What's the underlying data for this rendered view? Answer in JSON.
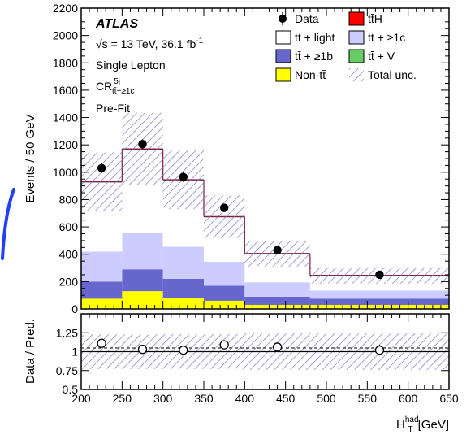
{
  "chart_data": [
    {
      "type": "bar",
      "stacked": true,
      "panel": "main",
      "bin_edges": [
        200,
        250,
        300,
        350,
        400,
        480,
        650
      ],
      "xlim": [
        200,
        650
      ],
      "ylim": [
        0,
        2200
      ],
      "ylabel": "Events / 50 GeV",
      "ytick_step": 200,
      "series": [
        {
          "name": "Non-tt̄",
          "color": "#ffff00",
          "values": [
            75,
            130,
            80,
            60,
            30,
            30
          ]
        },
        {
          "name": "tt̄ + ≥1b",
          "color": "#6666cc",
          "values": [
            125,
            160,
            140,
            110,
            60,
            45
          ]
        },
        {
          "name": "tt̄ + ≥1c",
          "color": "#ccccff",
          "values": [
            220,
            270,
            235,
            175,
            105,
            60
          ]
        },
        {
          "name": "tt̄ + light",
          "color": "#ffffff",
          "values": [
            510,
            610,
            490,
            330,
            210,
            110
          ]
        },
        {
          "name": "tt̄V",
          "color": "#66cc66",
          "values": [
            2,
            2,
            2,
            1,
            1,
            1
          ]
        },
        {
          "name": "tt̄H",
          "color": "#ff0000",
          "values": [
            1,
            1,
            1,
            1,
            1,
            1
          ]
        }
      ],
      "total_prediction": [
        930,
        1170,
        945,
        675,
        405,
        245
      ],
      "uncertainty": [
        215,
        265,
        215,
        155,
        95,
        60
      ],
      "data_points": {
        "name": "Data",
        "x": [
          225,
          275,
          325,
          375,
          440,
          565
        ],
        "y": [
          1030,
          1205,
          965,
          740,
          430,
          250
        ],
        "yerr": [
          35,
          35,
          35,
          30,
          20,
          16
        ]
      },
      "legend": [
        {
          "label": "Data",
          "style": "marker"
        },
        {
          "label": "tt̄H",
          "style": "fill",
          "color": "#ff0000"
        },
        {
          "label": "tt̄ + light",
          "style": "fill",
          "color": "#ffffff"
        },
        {
          "label": "tt̄ + ≥1c",
          "style": "fill",
          "color": "#ccccff"
        },
        {
          "label": "tt̄ + ≥1b",
          "style": "fill",
          "color": "#6666cc"
        },
        {
          "label": "tt̄ + V",
          "style": "fill",
          "color": "#66cc66"
        },
        {
          "label": "Non-tt̄",
          "style": "fill",
          "color": "#ffff00"
        },
        {
          "label": "Total unc.",
          "style": "hatch",
          "color": "#7777cc"
        }
      ],
      "legend_position": "top-right",
      "annotations": {
        "experiment": "ATLAS",
        "energy_lumi": "√s = 13 TeV, 36.1 fb",
        "lumi_exponent": "-1",
        "channel": "Single Lepton",
        "region_prefix": "CR",
        "region_superscript": "5j",
        "region_subscript": "tt̄+≥1c",
        "fit_state": "Pre-Fit"
      }
    },
    {
      "type": "scatter",
      "panel": "ratio",
      "ylabel": "Data / Pred.",
      "xlabel": "H",
      "xlabel_superscript": "had",
      "xlabel_subscript": "T",
      "xlabel_unit": "[GeV]",
      "xlim": [
        200,
        650
      ],
      "ylim": [
        0.5,
        1.5
      ],
      "xticks": [
        200,
        250,
        300,
        350,
        400,
        450,
        500,
        550,
        600,
        650
      ],
      "yticks": [
        "0.5",
        "0.75",
        "1",
        "1.25"
      ],
      "x": [
        225,
        275,
        325,
        375,
        440,
        565
      ],
      "ratio": [
        1.11,
        1.03,
        1.02,
        1.09,
        1.06,
        1.02
      ],
      "ratio_err": [
        0.04,
        0.03,
        0.04,
        0.04,
        0.05,
        0.07
      ],
      "band_halfwidth": [
        0.23,
        0.23,
        0.23,
        0.23,
        0.24,
        0.24
      ],
      "band_center": 1.0
    }
  ]
}
